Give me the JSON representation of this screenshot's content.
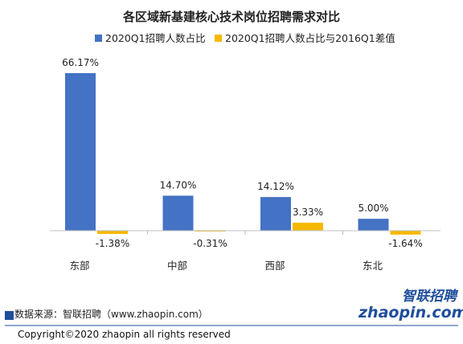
{
  "chart_data": {
    "type": "bar",
    "title": "各区域新基建核心技术岗位招聘需求对比",
    "categories": [
      "东部",
      "中部",
      "西部",
      "东北"
    ],
    "series": [
      {
        "name": "2020Q1招聘人数占比",
        "values": [
          66.17,
          14.7,
          14.12,
          5.0
        ],
        "labels": [
          "66.17%",
          "14.70%",
          "14.12%",
          "5.00%"
        ]
      },
      {
        "name": "2020Q1招聘人数占比与2016Q1差值",
        "values": [
          -1.38,
          -0.31,
          3.33,
          -1.64
        ],
        "labels": [
          "-1.38%",
          "-0.31%",
          "3.33%",
          "-1.64%"
        ]
      }
    ],
    "colors": [
      "#4472c4",
      "#f5b800"
    ],
    "legend_position": "top",
    "grid": false
  },
  "footer": {
    "source": "数据来源：智联招聘（www.zhaopin.com）",
    "copyright": "Copyright©2020 zhaopin all rights reserved"
  },
  "logo": {
    "cn": "智联招聘",
    "en": "zhaopin.com"
  }
}
